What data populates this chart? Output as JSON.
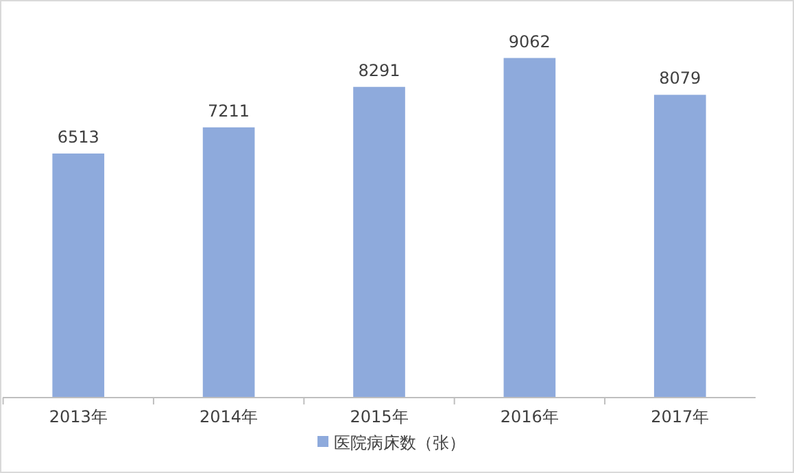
{
  "chart_data": {
    "type": "bar",
    "categories": [
      "2013年",
      "2014年",
      "2015年",
      "2016年",
      "2017年"
    ],
    "series": [
      {
        "name": "医院病床数（张）",
        "color": "#8eaadc",
        "values": [
          6513,
          7211,
          8291,
          9062,
          8079
        ]
      }
    ],
    "data_labels": true,
    "legend": "bottom",
    "grid": false
  }
}
